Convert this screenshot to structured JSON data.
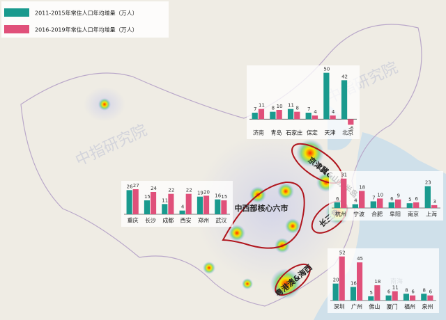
{
  "legend": {
    "items": [
      {
        "label": "2011-2015年常住人口年均增量（万人）",
        "color": "#1a9a8e"
      },
      {
        "label": "2016-2019年常住人口年均增量（万人）",
        "color": "#e0507a"
      }
    ]
  },
  "watermark": "中指研究院",
  "regions": [
    "京津冀&山东半岛",
    "中西部核心六市",
    "长三角",
    "粤港澳&海西"
  ],
  "sea_label": "南海",
  "chart_data": [
    {
      "type": "bar",
      "categories": [
        "济南",
        "青岛",
        "石家庄",
        "保定",
        "天津",
        "北京"
      ],
      "ylim": [
        -8,
        52
      ],
      "series": [
        {
          "name": "2011-2015年常住人口年均增量（万人）",
          "color": "#1a9a8e",
          "values": [
            7,
            8,
            11,
            7,
            50,
            42
          ]
        },
        {
          "name": "2016-2019年常住人口年均增量（万人）",
          "color": "#e0507a",
          "values": [
            11,
            10,
            8,
            4,
            4,
            -6
          ]
        }
      ]
    },
    {
      "type": "bar",
      "categories": [
        "重庆",
        "长沙",
        "成都",
        "西安",
        "郑州",
        "武汉"
      ],
      "ylim": [
        0,
        30
      ],
      "series": [
        {
          "name": "2011-2015年常住人口年均增量（万人）",
          "color": "#1a9a8e",
          "values": [
            26,
            15,
            11,
            4,
            19,
            16
          ]
        },
        {
          "name": "2016-2019年常住人口年均增量（万人）",
          "color": "#e0507a",
          "values": [
            27,
            24,
            22,
            22,
            20,
            15
          ]
        }
      ]
    },
    {
      "type": "bar",
      "categories": [
        "杭州",
        "宁波",
        "合肥",
        "阜阳",
        "南京",
        "上海"
      ],
      "ylim": [
        0,
        33
      ],
      "series": [
        {
          "name": "2011-2015年常住人口年均增量（万人）",
          "color": "#1a9a8e",
          "values": [
            6,
            4,
            7,
            6,
            5,
            23
          ]
        },
        {
          "name": "2016-2019年常住人口年均增量（万人）",
          "color": "#e0507a",
          "values": [
            31,
            18,
            10,
            9,
            6,
            3
          ]
        }
      ]
    },
    {
      "type": "bar",
      "categories": [
        "深圳",
        "广州",
        "佛山",
        "厦门",
        "福州",
        "泉州"
      ],
      "ylim": [
        0,
        55
      ],
      "series": [
        {
          "name": "2011-2015年常住人口年均增量（万人）",
          "color": "#1a9a8e",
          "values": [
            20,
            16,
            5,
            6,
            8,
            8
          ]
        },
        {
          "name": "2016-2019年常住人口年均增量（万人）",
          "color": "#e0507a",
          "values": [
            52,
            45,
            18,
            11,
            6,
            6
          ]
        }
      ]
    }
  ]
}
